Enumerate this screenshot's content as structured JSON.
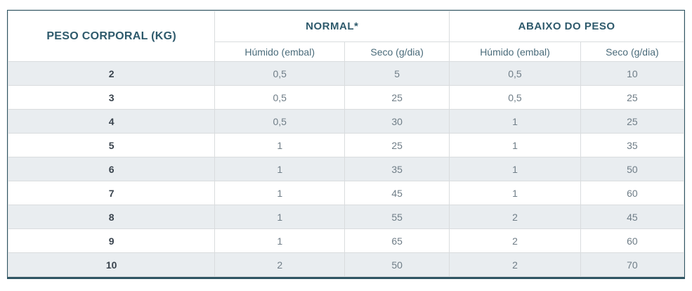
{
  "chart_data": {
    "type": "table",
    "corner_header": "PESO CORPORAL (KG)",
    "groups": [
      {
        "label": "NORMAL*",
        "colspan": 2
      },
      {
        "label": "ABAIXO DO PESO",
        "colspan": 2
      }
    ],
    "subheaders": [
      "Húmido (embal)",
      "Seco (g/dia)",
      "Húmido (embal)",
      "Seco (g/dia)"
    ],
    "rows": [
      {
        "peso": "2",
        "values": [
          "0,5",
          "5",
          "0,5",
          "10"
        ]
      },
      {
        "peso": "3",
        "values": [
          "0,5",
          "25",
          "0,5",
          "25"
        ]
      },
      {
        "peso": "4",
        "values": [
          "0,5",
          "30",
          "1",
          "25"
        ]
      },
      {
        "peso": "5",
        "values": [
          "1",
          "25",
          "1",
          "35"
        ]
      },
      {
        "peso": "6",
        "values": [
          "1",
          "35",
          "1",
          "50"
        ]
      },
      {
        "peso": "7",
        "values": [
          "1",
          "45",
          "1",
          "60"
        ]
      },
      {
        "peso": "8",
        "values": [
          "1",
          "55",
          "2",
          "45"
        ]
      },
      {
        "peso": "9",
        "values": [
          "1",
          "65",
          "2",
          "60"
        ]
      },
      {
        "peso": "10",
        "values": [
          "2",
          "50",
          "2",
          "70"
        ]
      }
    ]
  },
  "colors": {
    "header_text": "#2e5a6c",
    "subheader_text": "#4a6b7a",
    "row_text": "#6f7d87",
    "peso_text": "#39434d",
    "stripe_bg": "#e9edf0",
    "outer_border": "#2f5563",
    "inner_border": "#d9dcde",
    "background": "#ffffff"
  }
}
